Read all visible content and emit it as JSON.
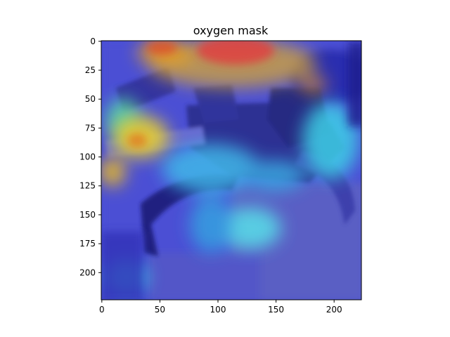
{
  "title": "oxygen mask",
  "xaxis": {
    "ticks": [
      0,
      50,
      100,
      150,
      200
    ],
    "labels": [
      "0",
      "50",
      "100",
      "150",
      "200"
    ],
    "range": [
      -0.5,
      223.5
    ]
  },
  "yaxis": {
    "ticks": [
      0,
      25,
      50,
      75,
      100,
      125,
      150,
      175,
      200
    ],
    "labels": [
      "0",
      "25",
      "50",
      "75",
      "100",
      "125",
      "150",
      "175",
      "200"
    ],
    "range": [
      223.5,
      -0.5
    ],
    "inverted": true
  },
  "image": {
    "description_colors": {
      "background": "#3a3fd6",
      "hot": "#e8321e",
      "warm": "#f0c020",
      "cool": "#3ad8e8",
      "dark": "#10107a"
    }
  }
}
